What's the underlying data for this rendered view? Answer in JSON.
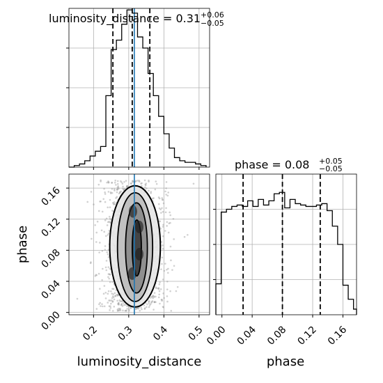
{
  "chart_data": [
    {
      "panel": "top-left-marginal",
      "type": "histogram-step",
      "parameter": "luminosity_distance",
      "title_main": "luminosity_distance = 0.31",
      "title_upper": "+0.06",
      "title_lower": "−0.05",
      "xlim": [
        0.13,
        0.53
      ],
      "ylim": [
        0,
        1.0
      ],
      "grid": true,
      "xticks": [
        0.2,
        0.3,
        0.4,
        0.5
      ],
      "bin_edges": [
        0.13,
        0.145,
        0.16,
        0.175,
        0.19,
        0.205,
        0.22,
        0.235,
        0.25,
        0.265,
        0.28,
        0.295,
        0.31,
        0.325,
        0.34,
        0.355,
        0.37,
        0.385,
        0.4,
        0.415,
        0.43,
        0.445,
        0.46,
        0.475,
        0.49,
        0.505,
        0.52
      ],
      "counts": [
        0.0,
        0.01,
        0.02,
        0.04,
        0.07,
        0.1,
        0.13,
        0.45,
        0.74,
        0.8,
        0.9,
        0.99,
        0.97,
        0.82,
        0.75,
        0.59,
        0.45,
        0.32,
        0.21,
        0.12,
        0.06,
        0.04,
        0.03,
        0.03,
        0.02,
        0.01
      ],
      "quantiles": [
        0.255,
        0.31,
        0.36
      ],
      "truth": 0.316,
      "truth_color": "#1f77b4"
    },
    {
      "panel": "bottom-right-marginal",
      "type": "histogram-step",
      "parameter": "phase",
      "title_main": "phase = 0.08",
      "title_upper": "+0.05",
      "title_lower": "−0.05",
      "xlabel": "phase",
      "xlim": [
        -0.008,
        0.178
      ],
      "ylim": [
        0,
        1.0
      ],
      "grid": true,
      "xticks": [
        0.0,
        0.04,
        0.08,
        0.12,
        0.16
      ],
      "xtick_labels": [
        "0.00",
        "0.04",
        "0.08",
        "0.12",
        "0.16"
      ],
      "bin_edges": [
        -0.008,
        -0.001,
        0.006,
        0.013,
        0.02,
        0.027,
        0.034,
        0.041,
        0.048,
        0.055,
        0.062,
        0.069,
        0.076,
        0.083,
        0.09,
        0.097,
        0.104,
        0.111,
        0.118,
        0.125,
        0.132,
        0.139,
        0.146,
        0.153,
        0.16,
        0.167,
        0.174,
        0.178
      ],
      "counts": [
        0.22,
        0.73,
        0.75,
        0.77,
        0.78,
        0.77,
        0.81,
        0.77,
        0.82,
        0.78,
        0.81,
        0.86,
        0.87,
        0.76,
        0.82,
        0.79,
        0.78,
        0.77,
        0.77,
        0.78,
        0.79,
        0.74,
        0.63,
        0.5,
        0.21,
        0.11,
        0.04
      ],
      "quantiles": [
        0.028,
        0.08,
        0.13
      ]
    },
    {
      "panel": "bottom-left-2d",
      "type": "scatter-contour",
      "xlabel": "luminosity_distance",
      "ylabel": "phase",
      "xlim": [
        0.13,
        0.53
      ],
      "ylim": [
        -0.003,
        0.178
      ],
      "grid": true,
      "xticks": [
        0.2,
        0.3,
        0.4,
        0.5
      ],
      "yticks": [
        0.0,
        0.04,
        0.08,
        0.12,
        0.16
      ],
      "ytick_labels": [
        "0.00",
        "0.04",
        "0.08",
        "0.12",
        "0.16"
      ],
      "truth_x": 0.316,
      "truth_color": "#1f77b4",
      "contours": [
        {
          "level": "outer",
          "cx": 0.318,
          "cy": 0.085,
          "rx": 0.072,
          "ry": 0.078,
          "fill": "#e6e6e6"
        },
        {
          "level": "mid",
          "cx": 0.318,
          "cy": 0.084,
          "rx": 0.05,
          "ry": 0.07,
          "fill": "#bdbdbd"
        },
        {
          "level": "inner",
          "cx": 0.322,
          "cy": 0.083,
          "rx": 0.031,
          "ry": 0.058,
          "fill": "#8a8a8a"
        },
        {
          "level": "core",
          "cx": 0.323,
          "cy": 0.083,
          "rx": 0.013,
          "ry": 0.036,
          "fill": "#3c3c3c"
        }
      ]
    }
  ]
}
